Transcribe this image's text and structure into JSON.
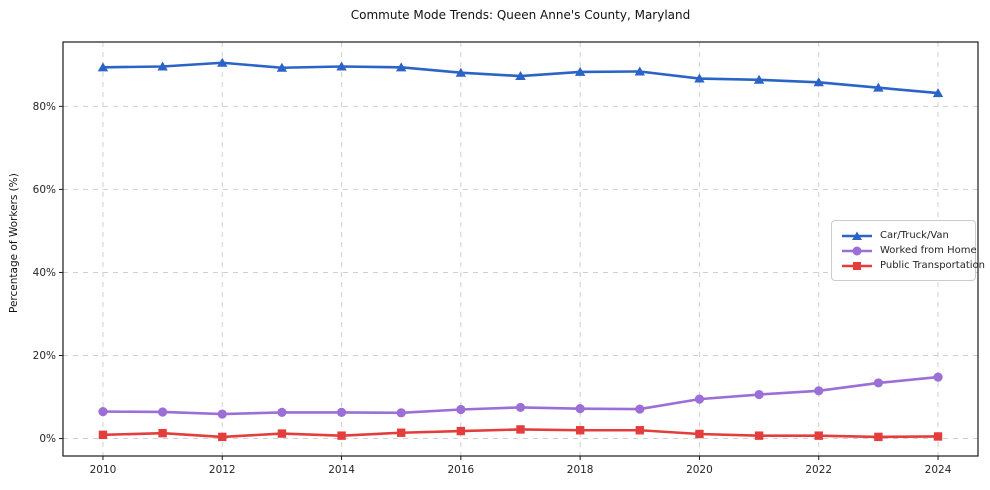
{
  "chart_data": {
    "type": "line",
    "title": "Commute Mode Trends: Queen Anne's County, Maryland",
    "xlabel": "",
    "ylabel": "Percentage of Workers (%)",
    "x": [
      2010,
      2011,
      2012,
      2013,
      2014,
      2015,
      2016,
      2017,
      2018,
      2019,
      2020,
      2021,
      2022,
      2023,
      2024
    ],
    "series": [
      {
        "name": "Car/Truck/Van",
        "color": "#2b64c6",
        "marker": "triangle",
        "values": [
          89.4,
          89.6,
          90.5,
          89.3,
          89.6,
          89.4,
          88.1,
          87.3,
          88.3,
          88.4,
          86.7,
          86.4,
          85.8,
          84.5,
          83.2
        ]
      },
      {
        "name": "Worked from Home",
        "color": "#9b6fd6",
        "marker": "circle",
        "values": [
          6.5,
          6.4,
          5.9,
          6.3,
          6.3,
          6.2,
          7.0,
          7.5,
          7.2,
          7.1,
          9.5,
          10.6,
          11.5,
          13.4,
          14.8
        ]
      },
      {
        "name": "Public Transportation",
        "color": "#e33e3c",
        "marker": "square",
        "values": [
          0.9,
          1.3,
          0.4,
          1.2,
          0.7,
          1.4,
          1.8,
          2.2,
          2.0,
          2.0,
          1.1,
          0.7,
          0.7,
          0.4,
          0.5
        ]
      }
    ],
    "xticks": [
      2010,
      2012,
      2014,
      2016,
      2018,
      2020,
      2022,
      2024
    ],
    "yticks": [
      0,
      20,
      40,
      60,
      80
    ],
    "ytick_suffix": "%",
    "xlim": [
      2009.33,
      2024.67
    ],
    "ylim": [
      -4.2,
      95.5
    ],
    "grid": true,
    "grid_color": "#d0d0d0",
    "spine_color": "#1a1a1a",
    "tick_label_color": "#262626",
    "legend_position": "right-middle"
  }
}
